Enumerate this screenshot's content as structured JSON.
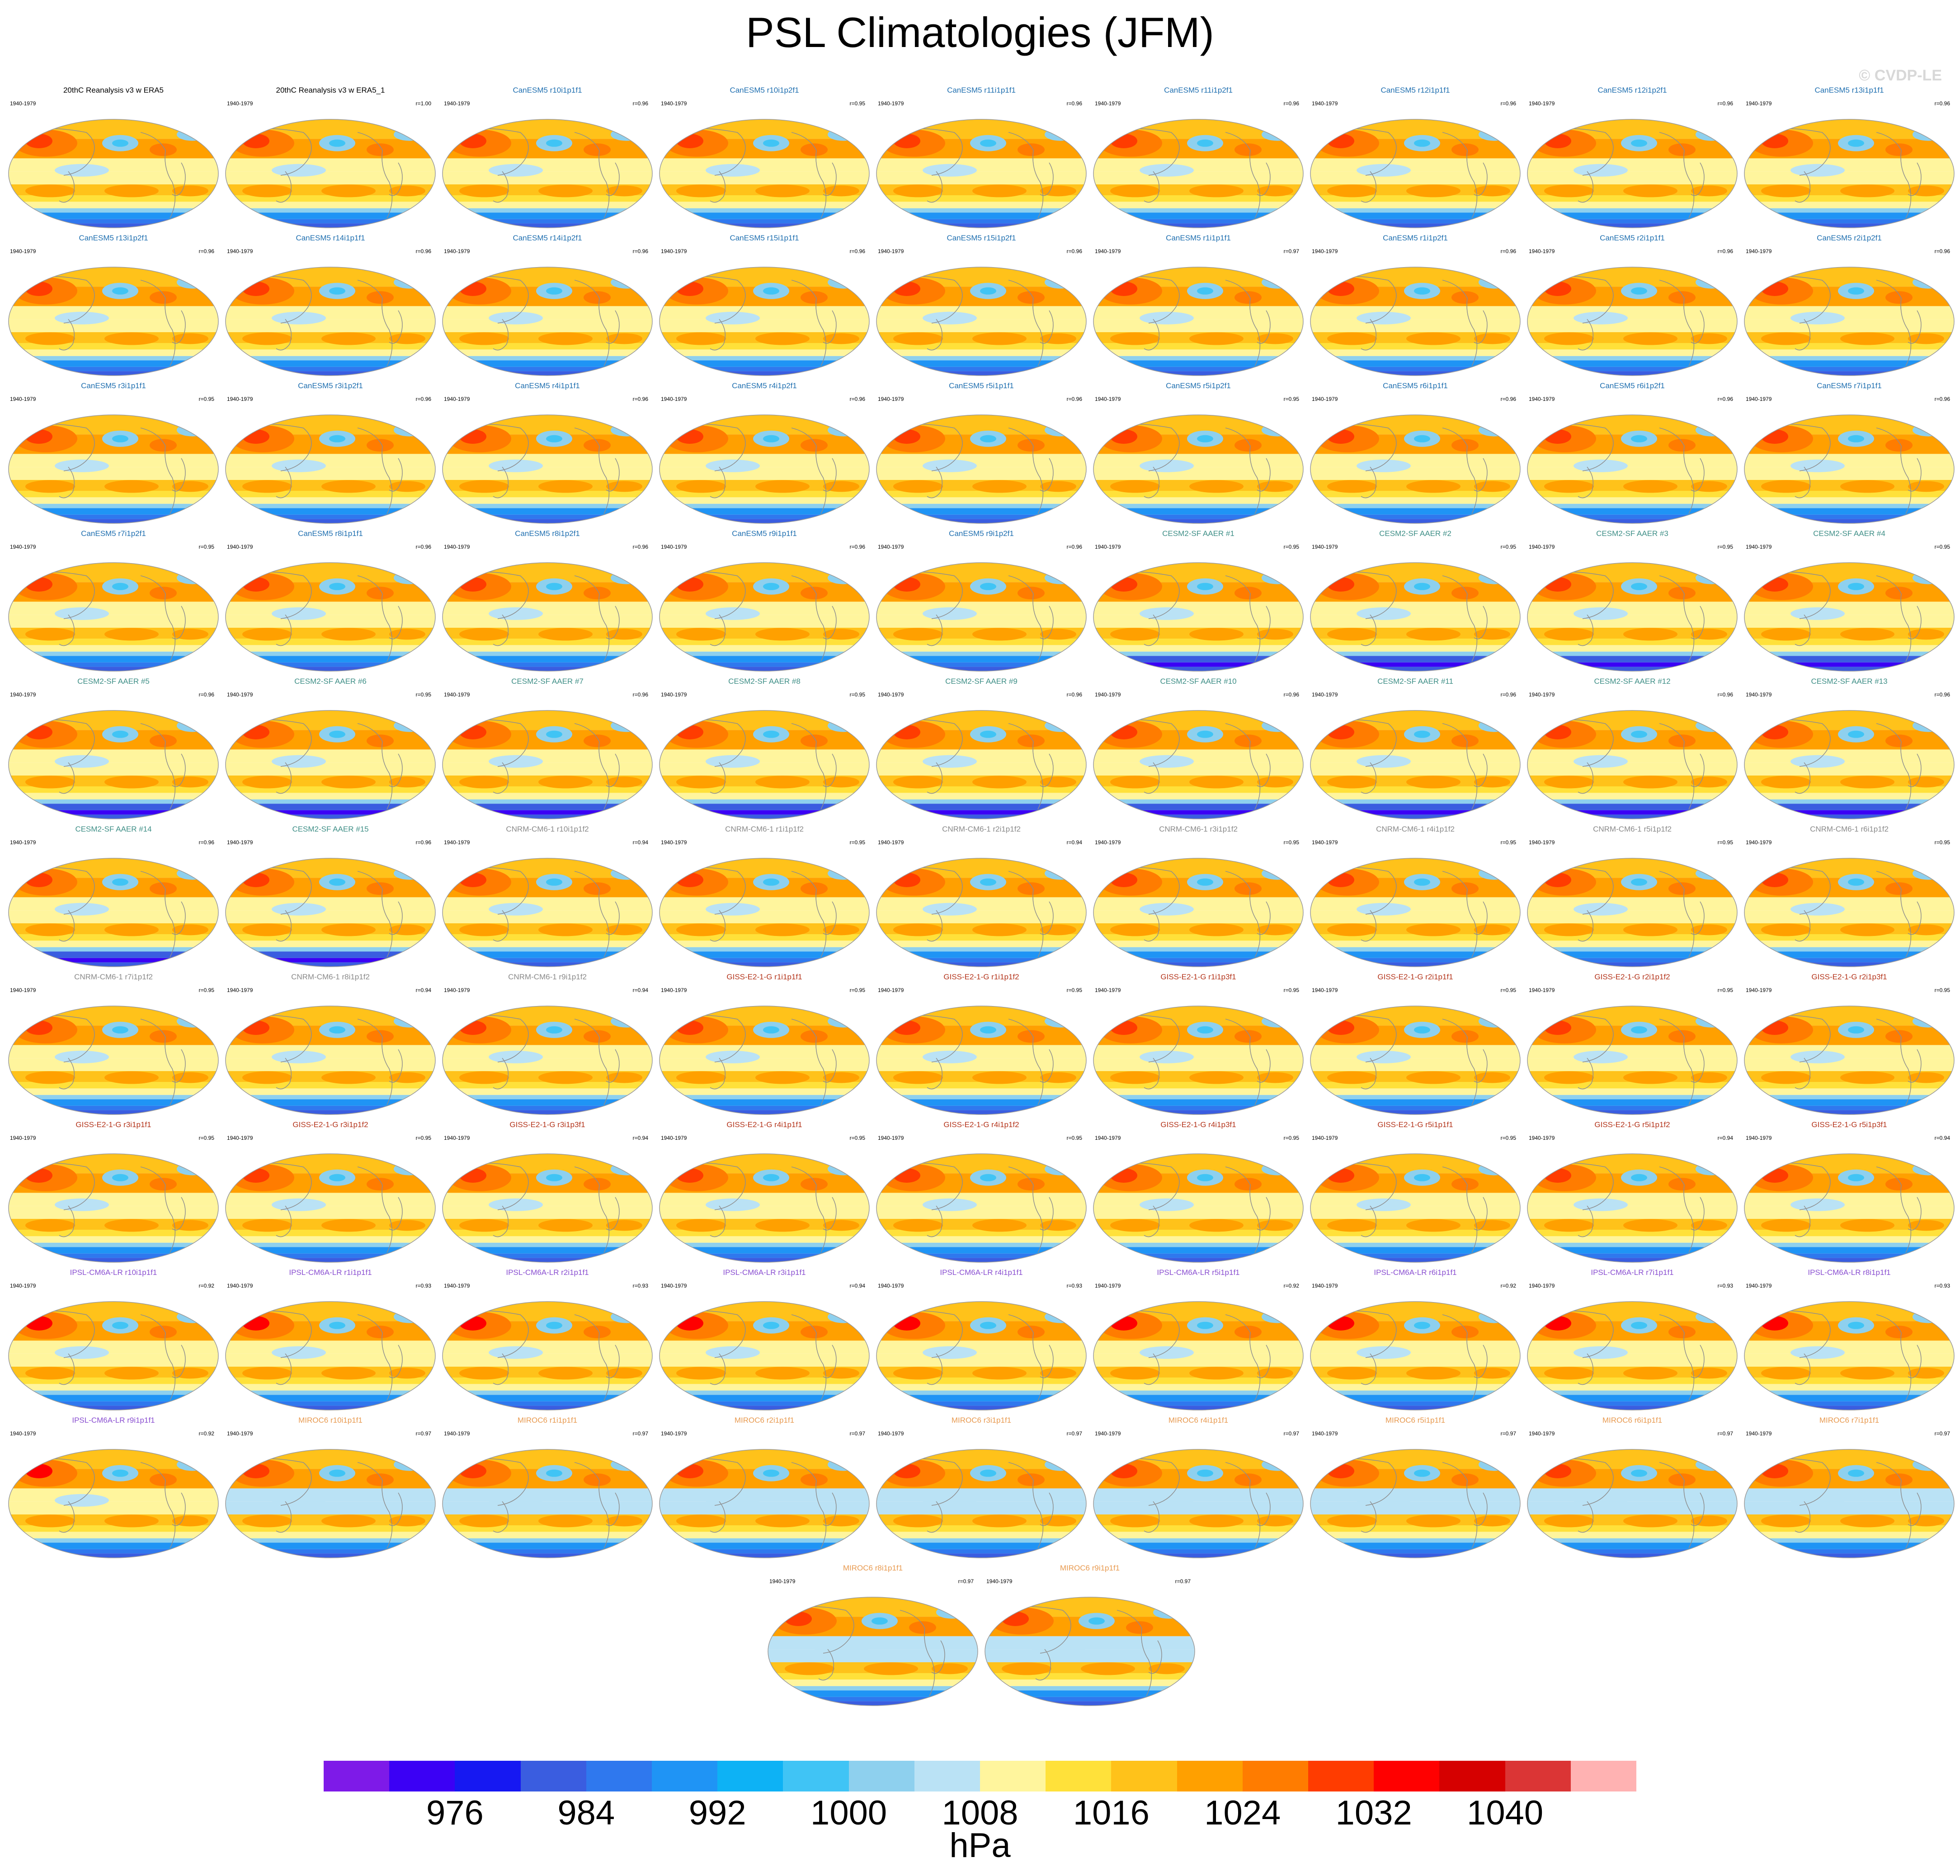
{
  "title": "PSL Climatologies (JFM)",
  "watermark": "© CVDP-LE",
  "colorbar": {
    "colors": [
      "#7e1ae8",
      "#3b00f5",
      "#1618f2",
      "#3a5de0",
      "#2f78ee",
      "#1f94f5",
      "#0db2f5",
      "#40c4f5",
      "#8ed0ee",
      "#bae2f5",
      "#fff59d",
      "#ffe13a",
      "#ffc21a",
      "#ffa000",
      "#ff7c00",
      "#ff3c00",
      "#ff0000",
      "#d60000",
      "#db3535",
      "#ffb2b2"
    ],
    "labels": [
      {
        "text": "976",
        "boundary": 2
      },
      {
        "text": "984",
        "boundary": 4
      },
      {
        "text": "992",
        "boundary": 6
      },
      {
        "text": "1000",
        "boundary": 8
      },
      {
        "text": "1008",
        "boundary": 10
      },
      {
        "text": "1016",
        "boundary": 12
      },
      {
        "text": "1024",
        "boundary": 14
      },
      {
        "text": "1032",
        "boundary": 16
      },
      {
        "text": "1040",
        "boundary": 18
      }
    ],
    "units": "hPa"
  },
  "model_colors": {
    "obs": "#000000",
    "CanESM5": "#1f6fb0",
    "CESM2": "#3f8f87",
    "CNRM": "#8a8a8a",
    "GISS": "#b4351c",
    "IPSL": "#8a4fd1",
    "MIROC6": "#e89a50"
  },
  "panels": [
    {
      "title": "20thC Reanalysis v3 w ERA5",
      "period": "1940-1979",
      "r": "",
      "model": "obs",
      "style": "obs"
    },
    {
      "title": "20thC Reanalysis v3 w ERA5_1",
      "period": "1940-1979",
      "r": "r=1.00",
      "model": "obs",
      "style": "obs"
    },
    {
      "title": "CanESM5 r10i1p1f1",
      "period": "1940-1979",
      "r": "r=0.96",
      "model": "CanESM5",
      "style": "can"
    },
    {
      "title": "CanESM5 r10i1p2f1",
      "period": "1940-1979",
      "r": "r=0.95",
      "model": "CanESM5",
      "style": "can"
    },
    {
      "title": "CanESM5 r11i1p1f1",
      "period": "1940-1979",
      "r": "r=0.96",
      "model": "CanESM5",
      "style": "can"
    },
    {
      "title": "CanESM5 r11i1p2f1",
      "period": "1940-1979",
      "r": "r=0.96",
      "model": "CanESM5",
      "style": "can"
    },
    {
      "title": "CanESM5 r12i1p1f1",
      "period": "1940-1979",
      "r": "r=0.96",
      "model": "CanESM5",
      "style": "can"
    },
    {
      "title": "CanESM5 r12i1p2f1",
      "period": "1940-1979",
      "r": "r=0.96",
      "model": "CanESM5",
      "style": "can"
    },
    {
      "title": "CanESM5 r13i1p1f1",
      "period": "1940-1979",
      "r": "r=0.96",
      "model": "CanESM5",
      "style": "can"
    },
    {
      "title": "CanESM5 r13i1p2f1",
      "period": "1940-1979",
      "r": "r=0.96",
      "model": "CanESM5",
      "style": "can"
    },
    {
      "title": "CanESM5 r14i1p1f1",
      "period": "1940-1979",
      "r": "r=0.96",
      "model": "CanESM5",
      "style": "can"
    },
    {
      "title": "CanESM5 r14i1p2f1",
      "period": "1940-1979",
      "r": "r=0.96",
      "model": "CanESM5",
      "style": "can"
    },
    {
      "title": "CanESM5 r15i1p1f1",
      "period": "1940-1979",
      "r": "r=0.96",
      "model": "CanESM5",
      "style": "can"
    },
    {
      "title": "CanESM5 r15i1p2f1",
      "period": "1940-1979",
      "r": "r=0.96",
      "model": "CanESM5",
      "style": "can"
    },
    {
      "title": "CanESM5 r1i1p1f1",
      "period": "1940-1979",
      "r": "r=0.97",
      "model": "CanESM5",
      "style": "can"
    },
    {
      "title": "CanESM5 r1i1p2f1",
      "period": "1940-1979",
      "r": "r=0.96",
      "model": "CanESM5",
      "style": "can"
    },
    {
      "title": "CanESM5 r2i1p1f1",
      "period": "1940-1979",
      "r": "r=0.96",
      "model": "CanESM5",
      "style": "can"
    },
    {
      "title": "CanESM5 r2i1p2f1",
      "period": "1940-1979",
      "r": "r=0.96",
      "model": "CanESM5",
      "style": "can"
    },
    {
      "title": "CanESM5 r3i1p1f1",
      "period": "1940-1979",
      "r": "r=0.95",
      "model": "CanESM5",
      "style": "can"
    },
    {
      "title": "CanESM5 r3i1p2f1",
      "period": "1940-1979",
      "r": "r=0.96",
      "model": "CanESM5",
      "style": "can"
    },
    {
      "title": "CanESM5 r4i1p1f1",
      "period": "1940-1979",
      "r": "r=0.96",
      "model": "CanESM5",
      "style": "can"
    },
    {
      "title": "CanESM5 r4i1p2f1",
      "period": "1940-1979",
      "r": "r=0.96",
      "model": "CanESM5",
      "style": "can"
    },
    {
      "title": "CanESM5 r5i1p1f1",
      "period": "1940-1979",
      "r": "r=0.96",
      "model": "CanESM5",
      "style": "can"
    },
    {
      "title": "CanESM5 r5i1p2f1",
      "period": "1940-1979",
      "r": "r=0.95",
      "model": "CanESM5",
      "style": "can"
    },
    {
      "title": "CanESM5 r6i1p1f1",
      "period": "1940-1979",
      "r": "r=0.96",
      "model": "CanESM5",
      "style": "can"
    },
    {
      "title": "CanESM5 r6i1p2f1",
      "period": "1940-1979",
      "r": "r=0.96",
      "model": "CanESM5",
      "style": "can"
    },
    {
      "title": "CanESM5 r7i1p1f1",
      "period": "1940-1979",
      "r": "r=0.96",
      "model": "CanESM5",
      "style": "can"
    },
    {
      "title": "CanESM5 r7i1p2f1",
      "period": "1940-1979",
      "r": "r=0.95",
      "model": "CanESM5",
      "style": "can"
    },
    {
      "title": "CanESM5 r8i1p1f1",
      "period": "1940-1979",
      "r": "r=0.96",
      "model": "CanESM5",
      "style": "can"
    },
    {
      "title": "CanESM5 r8i1p2f1",
      "period": "1940-1979",
      "r": "r=0.96",
      "model": "CanESM5",
      "style": "can"
    },
    {
      "title": "CanESM5 r9i1p1f1",
      "period": "1940-1979",
      "r": "r=0.96",
      "model": "CanESM5",
      "style": "can"
    },
    {
      "title": "CanESM5 r9i1p2f1",
      "period": "1940-1979",
      "r": "r=0.96",
      "model": "CanESM5",
      "style": "can"
    },
    {
      "title": "CESM2-SF AAER #1",
      "period": "1940-1979",
      "r": "r=0.95",
      "model": "CESM2",
      "style": "cesm"
    },
    {
      "title": "CESM2-SF AAER #2",
      "period": "1940-1979",
      "r": "r=0.95",
      "model": "CESM2",
      "style": "cesm"
    },
    {
      "title": "CESM2-SF AAER #3",
      "period": "1940-1979",
      "r": "r=0.95",
      "model": "CESM2",
      "style": "cesm"
    },
    {
      "title": "CESM2-SF AAER #4",
      "period": "1940-1979",
      "r": "r=0.95",
      "model": "CESM2",
      "style": "cesm"
    },
    {
      "title": "CESM2-SF AAER #5",
      "period": "1940-1979",
      "r": "r=0.96",
      "model": "CESM2",
      "style": "cesm"
    },
    {
      "title": "CESM2-SF AAER #6",
      "period": "1940-1979",
      "r": "r=0.95",
      "model": "CESM2",
      "style": "cesm"
    },
    {
      "title": "CESM2-SF AAER #7",
      "period": "1940-1979",
      "r": "r=0.96",
      "model": "CESM2",
      "style": "cesm"
    },
    {
      "title": "CESM2-SF AAER #8",
      "period": "1940-1979",
      "r": "r=0.95",
      "model": "CESM2",
      "style": "cesm"
    },
    {
      "title": "CESM2-SF AAER #9",
      "period": "1940-1979",
      "r": "r=0.96",
      "model": "CESM2",
      "style": "cesm"
    },
    {
      "title": "CESM2-SF AAER #10",
      "period": "1940-1979",
      "r": "r=0.96",
      "model": "CESM2",
      "style": "cesm"
    },
    {
      "title": "CESM2-SF AAER #11",
      "period": "1940-1979",
      "r": "r=0.96",
      "model": "CESM2",
      "style": "cesm"
    },
    {
      "title": "CESM2-SF AAER #12",
      "period": "1940-1979",
      "r": "r=0.96",
      "model": "CESM2",
      "style": "cesm"
    },
    {
      "title": "CESM2-SF AAER #13",
      "period": "1940-1979",
      "r": "r=0.96",
      "model": "CESM2",
      "style": "cesm"
    },
    {
      "title": "CESM2-SF AAER #14",
      "period": "1940-1979",
      "r": "r=0.96",
      "model": "CESM2",
      "style": "cesm"
    },
    {
      "title": "CESM2-SF AAER #15",
      "period": "1940-1979",
      "r": "r=0.96",
      "model": "CESM2",
      "style": "cesm"
    },
    {
      "title": "CNRM-CM6-1 r10i1p1f2",
      "period": "1940-1979",
      "r": "r=0.94",
      "model": "CNRM",
      "style": "cnrm"
    },
    {
      "title": "CNRM-CM6-1 r1i1p1f2",
      "period": "1940-1979",
      "r": "r=0.95",
      "model": "CNRM",
      "style": "cnrm"
    },
    {
      "title": "CNRM-CM6-1 r2i1p1f2",
      "period": "1940-1979",
      "r": "r=0.94",
      "model": "CNRM",
      "style": "cnrm"
    },
    {
      "title": "CNRM-CM6-1 r3i1p1f2",
      "period": "1940-1979",
      "r": "r=0.95",
      "model": "CNRM",
      "style": "cnrm"
    },
    {
      "title": "CNRM-CM6-1 r4i1p1f2",
      "period": "1940-1979",
      "r": "r=0.95",
      "model": "CNRM",
      "style": "cnrm"
    },
    {
      "title": "CNRM-CM6-1 r5i1p1f2",
      "period": "1940-1979",
      "r": "r=0.95",
      "model": "CNRM",
      "style": "cnrm"
    },
    {
      "title": "CNRM-CM6-1 r6i1p1f2",
      "period": "1940-1979",
      "r": "r=0.95",
      "model": "CNRM",
      "style": "cnrm"
    },
    {
      "title": "CNRM-CM6-1 r7i1p1f2",
      "period": "1940-1979",
      "r": "r=0.95",
      "model": "CNRM",
      "style": "cnrm"
    },
    {
      "title": "CNRM-CM6-1 r8i1p1f2",
      "period": "1940-1979",
      "r": "r=0.94",
      "model": "CNRM",
      "style": "cnrm"
    },
    {
      "title": "CNRM-CM6-1 r9i1p1f2",
      "period": "1940-1979",
      "r": "r=0.94",
      "model": "CNRM",
      "style": "cnrm"
    },
    {
      "title": "GISS-E2-1-G r1i1p1f1",
      "period": "1940-1979",
      "r": "r=0.95",
      "model": "GISS",
      "style": "giss"
    },
    {
      "title": "GISS-E2-1-G r1i1p1f2",
      "period": "1940-1979",
      "r": "r=0.95",
      "model": "GISS",
      "style": "giss"
    },
    {
      "title": "GISS-E2-1-G r1i1p3f1",
      "period": "1940-1979",
      "r": "r=0.95",
      "model": "GISS",
      "style": "giss"
    },
    {
      "title": "GISS-E2-1-G r2i1p1f1",
      "period": "1940-1979",
      "r": "r=0.95",
      "model": "GISS",
      "style": "giss"
    },
    {
      "title": "GISS-E2-1-G r2i1p1f2",
      "period": "1940-1979",
      "r": "r=0.95",
      "model": "GISS",
      "style": "giss"
    },
    {
      "title": "GISS-E2-1-G r2i1p3f1",
      "period": "1940-1979",
      "r": "r=0.95",
      "model": "GISS",
      "style": "giss"
    },
    {
      "title": "GISS-E2-1-G r3i1p1f1",
      "period": "1940-1979",
      "r": "r=0.95",
      "model": "GISS",
      "style": "giss"
    },
    {
      "title": "GISS-E2-1-G r3i1p1f2",
      "period": "1940-1979",
      "r": "r=0.95",
      "model": "GISS",
      "style": "giss"
    },
    {
      "title": "GISS-E2-1-G r3i1p3f1",
      "period": "1940-1979",
      "r": "r=0.94",
      "model": "GISS",
      "style": "giss"
    },
    {
      "title": "GISS-E2-1-G r4i1p1f1",
      "period": "1940-1979",
      "r": "r=0.95",
      "model": "GISS",
      "style": "giss"
    },
    {
      "title": "GISS-E2-1-G r4i1p1f2",
      "period": "1940-1979",
      "r": "r=0.95",
      "model": "GISS",
      "style": "giss"
    },
    {
      "title": "GISS-E2-1-G r4i1p3f1",
      "period": "1940-1979",
      "r": "r=0.95",
      "model": "GISS",
      "style": "giss"
    },
    {
      "title": "GISS-E2-1-G r5i1p1f1",
      "period": "1940-1979",
      "r": "r=0.95",
      "model": "GISS",
      "style": "giss"
    },
    {
      "title": "GISS-E2-1-G r5i1p1f2",
      "period": "1940-1979",
      "r": "r=0.94",
      "model": "GISS",
      "style": "giss"
    },
    {
      "title": "GISS-E2-1-G r5i1p3f1",
      "period": "1940-1979",
      "r": "r=0.94",
      "model": "GISS",
      "style": "giss"
    },
    {
      "title": "IPSL-CM6A-LR r10i1p1f1",
      "period": "1940-1979",
      "r": "r=0.92",
      "model": "IPSL",
      "style": "ipsl"
    },
    {
      "title": "IPSL-CM6A-LR r1i1p1f1",
      "period": "1940-1979",
      "r": "r=0.93",
      "model": "IPSL",
      "style": "ipsl"
    },
    {
      "title": "IPSL-CM6A-LR r2i1p1f1",
      "period": "1940-1979",
      "r": "r=0.93",
      "model": "IPSL",
      "style": "ipsl"
    },
    {
      "title": "IPSL-CM6A-LR r3i1p1f1",
      "period": "1940-1979",
      "r": "r=0.94",
      "model": "IPSL",
      "style": "ipsl"
    },
    {
      "title": "IPSL-CM6A-LR r4i1p1f1",
      "period": "1940-1979",
      "r": "r=0.93",
      "model": "IPSL",
      "style": "ipsl"
    },
    {
      "title": "IPSL-CM6A-LR r5i1p1f1",
      "period": "1940-1979",
      "r": "r=0.92",
      "model": "IPSL",
      "style": "ipsl"
    },
    {
      "title": "IPSL-CM6A-LR r6i1p1f1",
      "period": "1940-1979",
      "r": "r=0.92",
      "model": "IPSL",
      "style": "ipsl"
    },
    {
      "title": "IPSL-CM6A-LR r7i1p1f1",
      "period": "1940-1979",
      "r": "r=0.93",
      "model": "IPSL",
      "style": "ipsl"
    },
    {
      "title": "IPSL-CM6A-LR r8i1p1f1",
      "period": "1940-1979",
      "r": "r=0.93",
      "model": "IPSL",
      "style": "ipsl"
    },
    {
      "title": "IPSL-CM6A-LR r9i1p1f1",
      "period": "1940-1979",
      "r": "r=0.92",
      "model": "IPSL",
      "style": "ipsl"
    },
    {
      "title": "MIROC6 r10i1p1f1",
      "period": "1940-1979",
      "r": "r=0.97",
      "model": "MIROC6",
      "style": "miroc"
    },
    {
      "title": "MIROC6 r1i1p1f1",
      "period": "1940-1979",
      "r": "r=0.97",
      "model": "MIROC6",
      "style": "miroc"
    },
    {
      "title": "MIROC6 r2i1p1f1",
      "period": "1940-1979",
      "r": "r=0.97",
      "model": "MIROC6",
      "style": "miroc"
    },
    {
      "title": "MIROC6 r3i1p1f1",
      "period": "1940-1979",
      "r": "r=0.97",
      "model": "MIROC6",
      "style": "miroc"
    },
    {
      "title": "MIROC6 r4i1p1f1",
      "period": "1940-1979",
      "r": "r=0.97",
      "model": "MIROC6",
      "style": "miroc"
    },
    {
      "title": "MIROC6 r5i1p1f1",
      "period": "1940-1979",
      "r": "r=0.97",
      "model": "MIROC6",
      "style": "miroc"
    },
    {
      "title": "MIROC6 r6i1p1f1",
      "period": "1940-1979",
      "r": "r=0.97",
      "model": "MIROC6",
      "style": "miroc"
    },
    {
      "title": "MIROC6 r7i1p1f1",
      "period": "1940-1979",
      "r": "r=0.97",
      "model": "MIROC6",
      "style": "miroc"
    },
    {
      "title": "MIROC6 r8i1p1f1",
      "period": "1940-1979",
      "r": "r=0.97",
      "model": "MIROC6",
      "style": "miroc"
    },
    {
      "title": "MIROC6 r9i1p1f1",
      "period": "1940-1979",
      "r": "r=0.97",
      "model": "MIROC6",
      "style": "miroc"
    }
  ]
}
